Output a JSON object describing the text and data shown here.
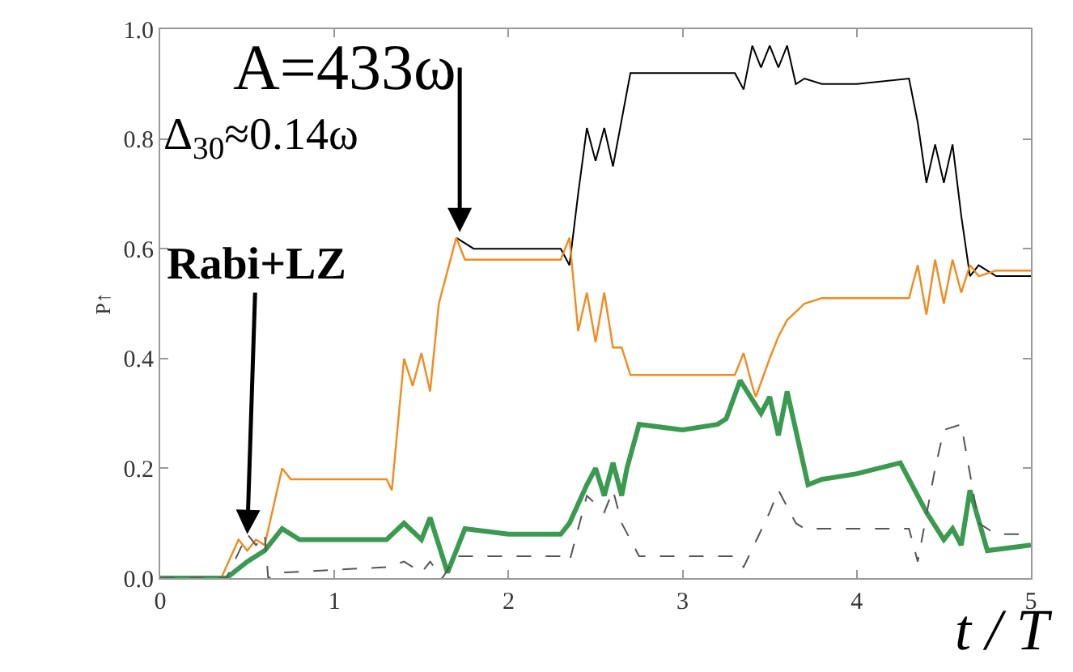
{
  "chart_data": {
    "type": "line",
    "xlabel": "t / T",
    "ylabel": "P↑",
    "xlim": [
      0,
      5
    ],
    "ylim": [
      0,
      1
    ],
    "xticks": [
      0,
      1,
      2,
      3,
      4,
      5
    ],
    "yticks": [
      {
        "value": 0,
        "label": "0.0"
      },
      {
        "value": 0.2,
        "label": "0.2"
      },
      {
        "value": 0.4,
        "label": "0.4"
      },
      {
        "value": 0.6,
        "label": "0.6"
      },
      {
        "value": 0.8,
        "label": "0.8"
      },
      {
        "value": 1,
        "label": "1.0"
      }
    ],
    "series": [
      {
        "color": "#000000",
        "line_style": "solid",
        "x": [
          1.7,
          1.8,
          2.0,
          2.3,
          2.35,
          2.4,
          2.45,
          2.5,
          2.55,
          2.6,
          2.7,
          2.8,
          3.0,
          3.3,
          3.35,
          3.4,
          3.45,
          3.5,
          3.55,
          3.6,
          3.65,
          3.7,
          3.8,
          4.0,
          4.3,
          4.35,
          4.4,
          4.45,
          4.5,
          4.55,
          4.6,
          4.65,
          4.7,
          4.8,
          5.0
        ],
        "values": [
          0.62,
          0.6,
          0.6,
          0.6,
          0.57,
          0.7,
          0.82,
          0.76,
          0.82,
          0.75,
          0.92,
          0.92,
          0.92,
          0.92,
          0.89,
          0.97,
          0.93,
          0.97,
          0.93,
          0.97,
          0.9,
          0.91,
          0.9,
          0.9,
          0.91,
          0.83,
          0.72,
          0.79,
          0.72,
          0.79,
          0.66,
          0.55,
          0.57,
          0.55,
          0.55
        ]
      },
      {
        "color": "#f28a1e",
        "line_style": "solid",
        "x": [
          0,
          0.35,
          0.45,
          0.5,
          0.55,
          0.6,
          0.7,
          0.75,
          1.0,
          1.3,
          1.33,
          1.4,
          1.45,
          1.5,
          1.55,
          1.6,
          1.7,
          1.75,
          2.0,
          2.3,
          2.35,
          2.4,
          2.45,
          2.5,
          2.55,
          2.6,
          2.65,
          2.7,
          2.8,
          3.0,
          3.3,
          3.35,
          3.4,
          3.42,
          3.5,
          3.55,
          3.6,
          3.7,
          3.8,
          4.0,
          4.3,
          4.35,
          4.4,
          4.45,
          4.5,
          4.55,
          4.6,
          4.65,
          4.7,
          4.8,
          5.0
        ],
        "values": [
          0,
          0,
          0.07,
          0.05,
          0.07,
          0.06,
          0.2,
          0.18,
          0.18,
          0.18,
          0.16,
          0.4,
          0.35,
          0.41,
          0.34,
          0.5,
          0.62,
          0.58,
          0.58,
          0.58,
          0.62,
          0.45,
          0.52,
          0.43,
          0.52,
          0.42,
          0.42,
          0.37,
          0.37,
          0.37,
          0.37,
          0.41,
          0.35,
          0.33,
          0.4,
          0.44,
          0.47,
          0.5,
          0.51,
          0.51,
          0.51,
          0.57,
          0.48,
          0.58,
          0.5,
          0.58,
          0.52,
          0.57,
          0.55,
          0.56,
          0.56
        ]
      },
      {
        "color": "#3a9a4f",
        "line_style": "solid",
        "x": [
          0,
          0.38,
          0.5,
          0.6,
          0.7,
          0.8,
          1.0,
          1.3,
          1.4,
          1.5,
          1.55,
          1.65,
          1.75,
          2.0,
          2.3,
          2.35,
          2.45,
          2.5,
          2.55,
          2.6,
          2.65,
          2.68,
          2.75,
          3.0,
          3.2,
          3.25,
          3.33,
          3.45,
          3.5,
          3.55,
          3.6,
          3.72,
          3.8,
          4.0,
          4.25,
          4.4,
          4.5,
          4.55,
          4.6,
          4.65,
          4.75,
          5.0
        ],
        "values": [
          0,
          0,
          0.03,
          0.05,
          0.09,
          0.07,
          0.07,
          0.07,
          0.1,
          0.07,
          0.11,
          0.01,
          0.09,
          0.08,
          0.08,
          0.1,
          0.17,
          0.2,
          0.15,
          0.21,
          0.15,
          0.2,
          0.28,
          0.27,
          0.28,
          0.29,
          0.36,
          0.3,
          0.33,
          0.26,
          0.34,
          0.17,
          0.18,
          0.19,
          0.21,
          0.12,
          0.07,
          0.09,
          0.06,
          0.16,
          0.05,
          0.06
        ]
      },
      {
        "color": "#555555",
        "line_style": "dashed",
        "x": [
          0,
          0.38,
          0.5,
          0.55,
          0.6,
          0.62,
          0.7,
          1.3,
          1.4,
          1.5,
          1.55,
          1.62,
          1.7,
          2.0,
          2.3,
          2.35,
          2.45,
          2.55,
          2.6,
          2.65,
          2.75,
          3.0,
          3.3,
          3.35,
          3.5,
          3.55,
          3.65,
          3.7,
          4.0,
          4.3,
          4.35,
          4.45,
          4.5,
          4.6,
          4.7,
          4.8,
          5.0
        ],
        "values": [
          0,
          0,
          0.08,
          0.06,
          0.08,
          0,
          0.01,
          0.02,
          0.03,
          0.01,
          0.03,
          0,
          0.04,
          0.04,
          0.04,
          0.03,
          0.15,
          0.12,
          0.16,
          0.1,
          0.04,
          0.04,
          0.04,
          0.02,
          0.12,
          0.16,
          0.1,
          0.09,
          0.09,
          0.09,
          0.03,
          0.2,
          0.27,
          0.28,
          0.1,
          0.08,
          0.08
        ]
      }
    ],
    "annotations": [
      {
        "text": "A=433ω",
        "x": 1.72,
        "y": 0.63
      },
      "Δ$_{30}$≈0.14ω",
      {
        "text": "Rabi+LZ",
        "x": 0.5,
        "y": 0.08
      }
    ]
  }
}
